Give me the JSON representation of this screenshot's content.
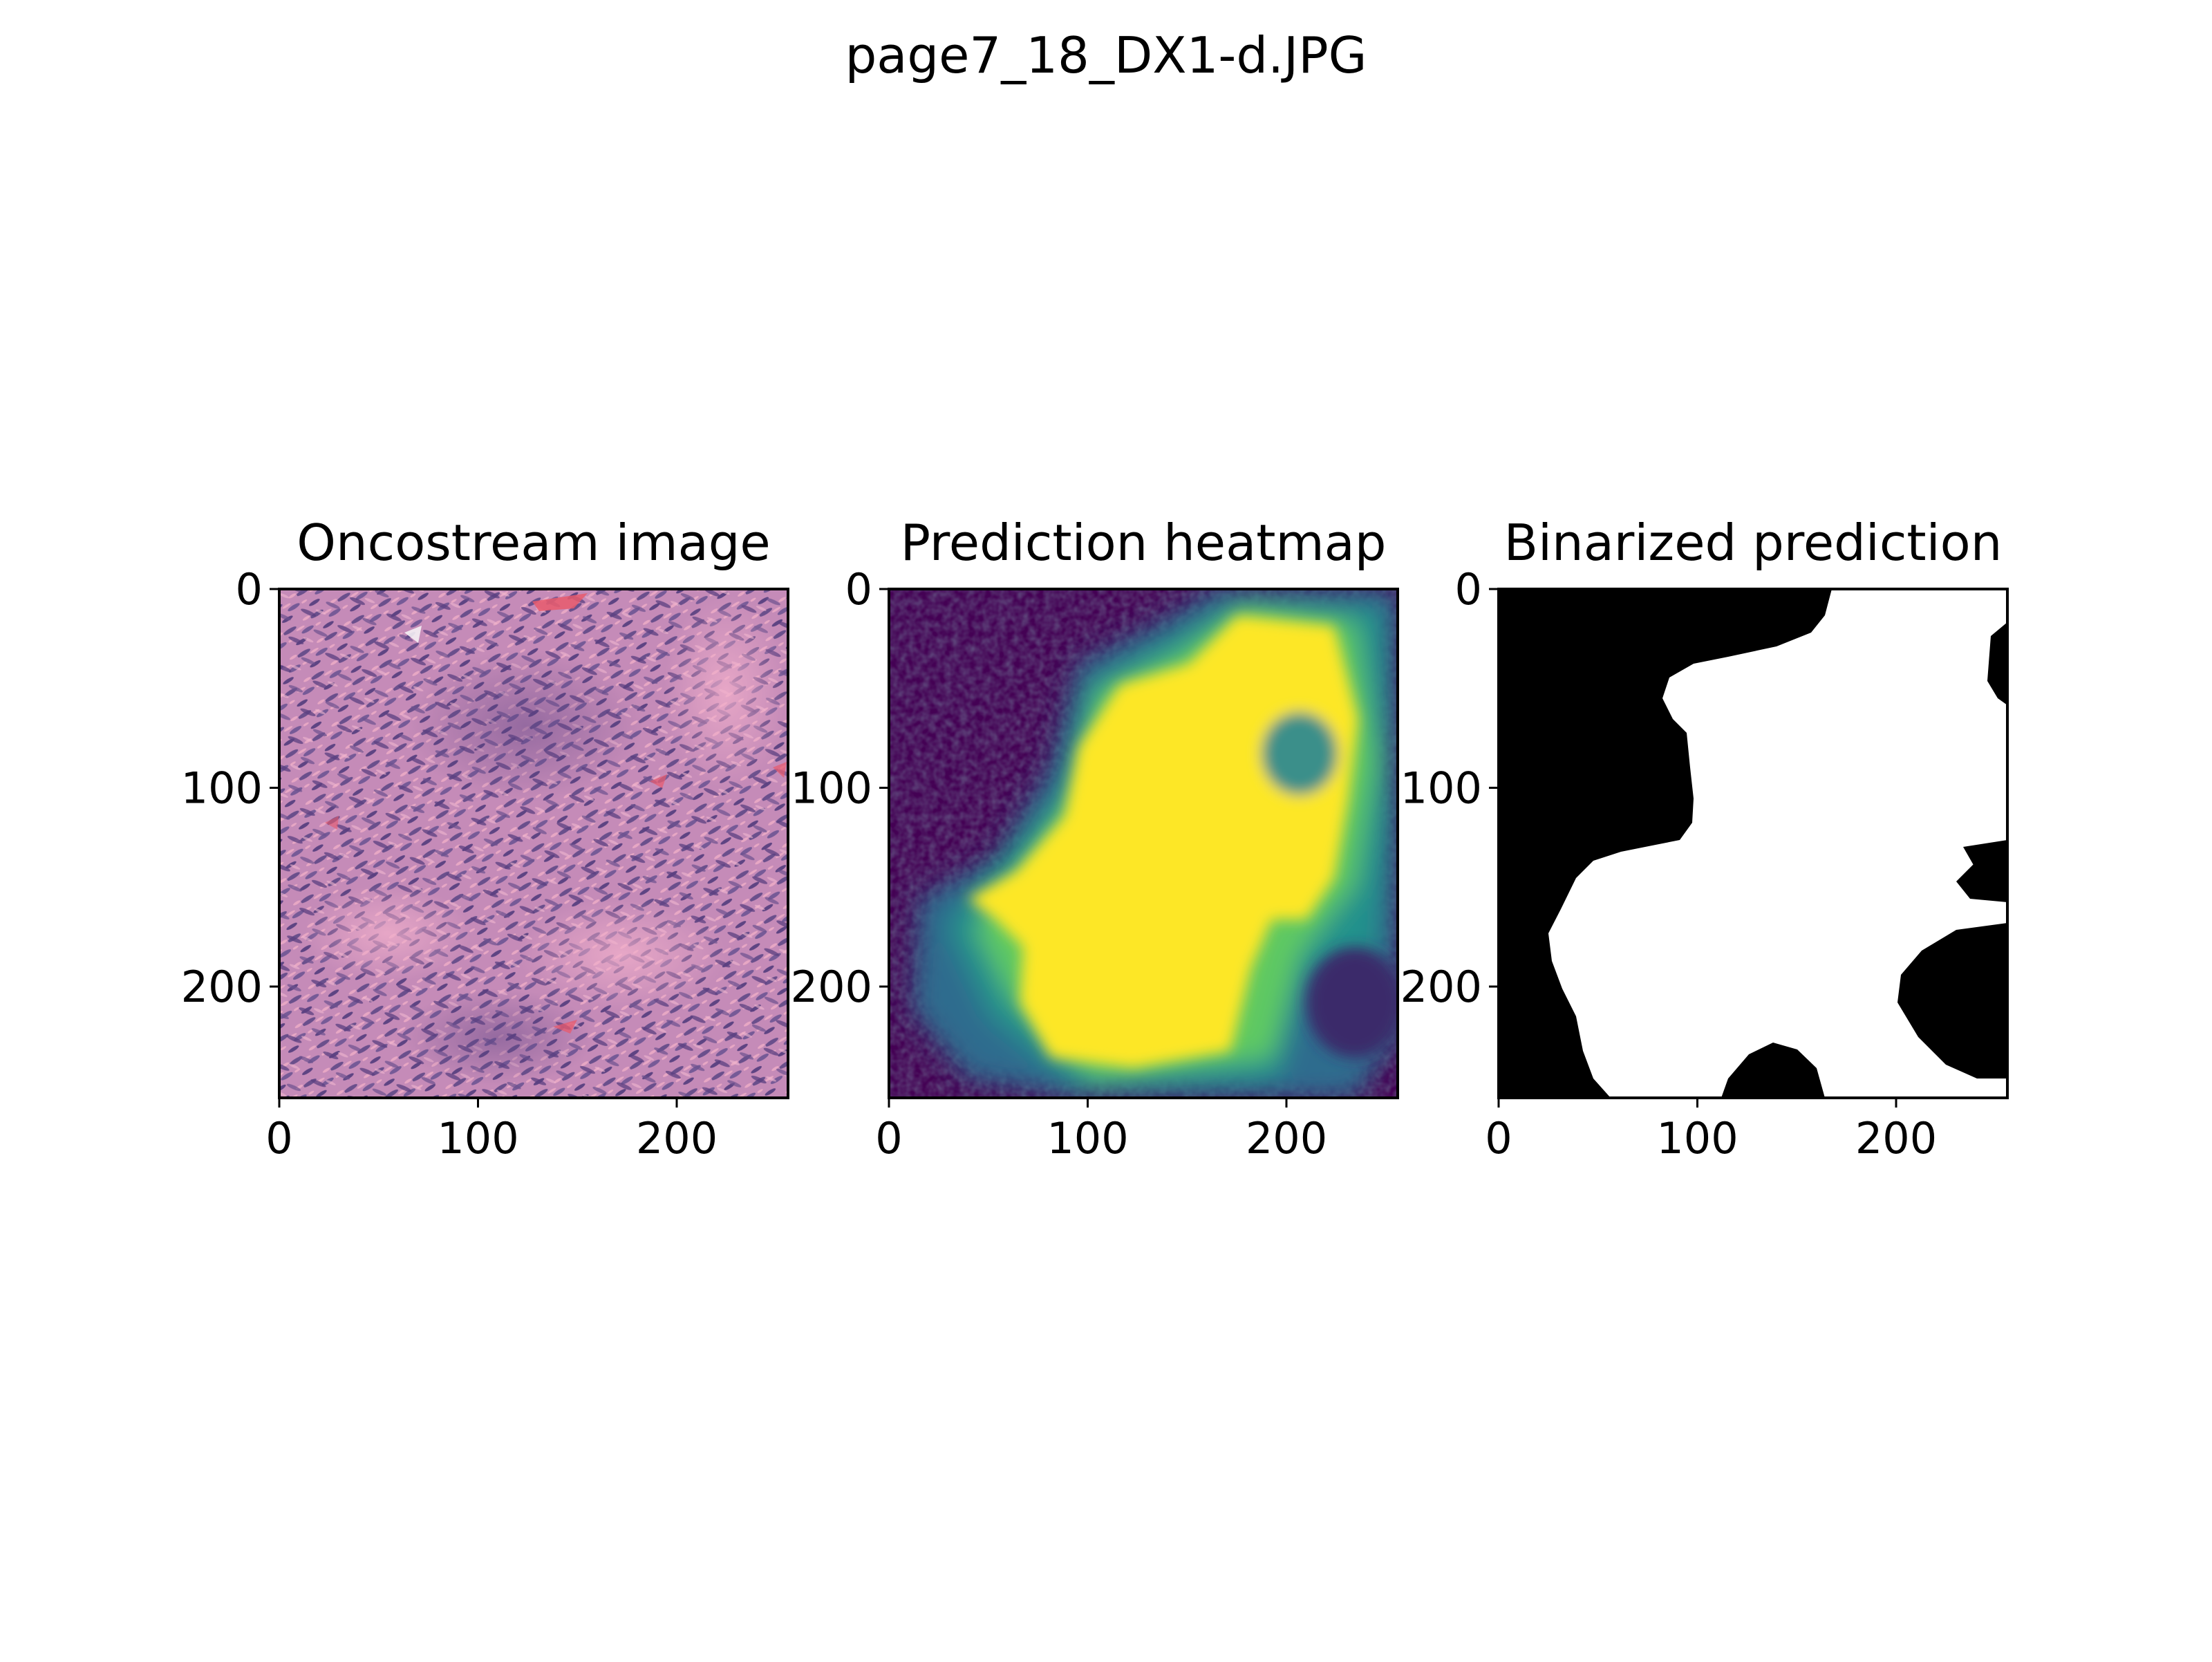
{
  "figure": {
    "suptitle": "page7_18_DX1-d.JPG"
  },
  "chart_data": [
    {
      "type": "heatmap",
      "title": "Oncostream image",
      "xlim": [
        0,
        256
      ],
      "ylim": [
        256,
        0
      ],
      "xticks": [
        "0",
        "100",
        "200"
      ],
      "yticks": [
        "0",
        "100",
        "200"
      ],
      "image": "H&E-stained tissue micrograph",
      "colors": {
        "base": "#c58bb8",
        "nuclei": "#6a4f8c",
        "stroma": "#e7a7c4",
        "rbc": "#e85a6c"
      }
    },
    {
      "type": "heatmap",
      "title": "Prediction heatmap",
      "xlim": [
        0,
        256
      ],
      "ylim": [
        256,
        0
      ],
      "xticks": [
        "0",
        "100",
        "200"
      ],
      "yticks": [
        "0",
        "100",
        "200"
      ],
      "colormap": "viridis",
      "colors": {
        "low": "#440154",
        "mid": "#21918c",
        "high": "#fde725"
      }
    },
    {
      "type": "heatmap",
      "title": "Binarized prediction",
      "xlim": [
        0,
        256
      ],
      "ylim": [
        256,
        0
      ],
      "xticks": [
        "0",
        "100",
        "200"
      ],
      "yticks": [
        "0",
        "100",
        "200"
      ],
      "colormap": "gray",
      "colors": {
        "negative": "#000000",
        "positive": "#ffffff"
      }
    }
  ]
}
